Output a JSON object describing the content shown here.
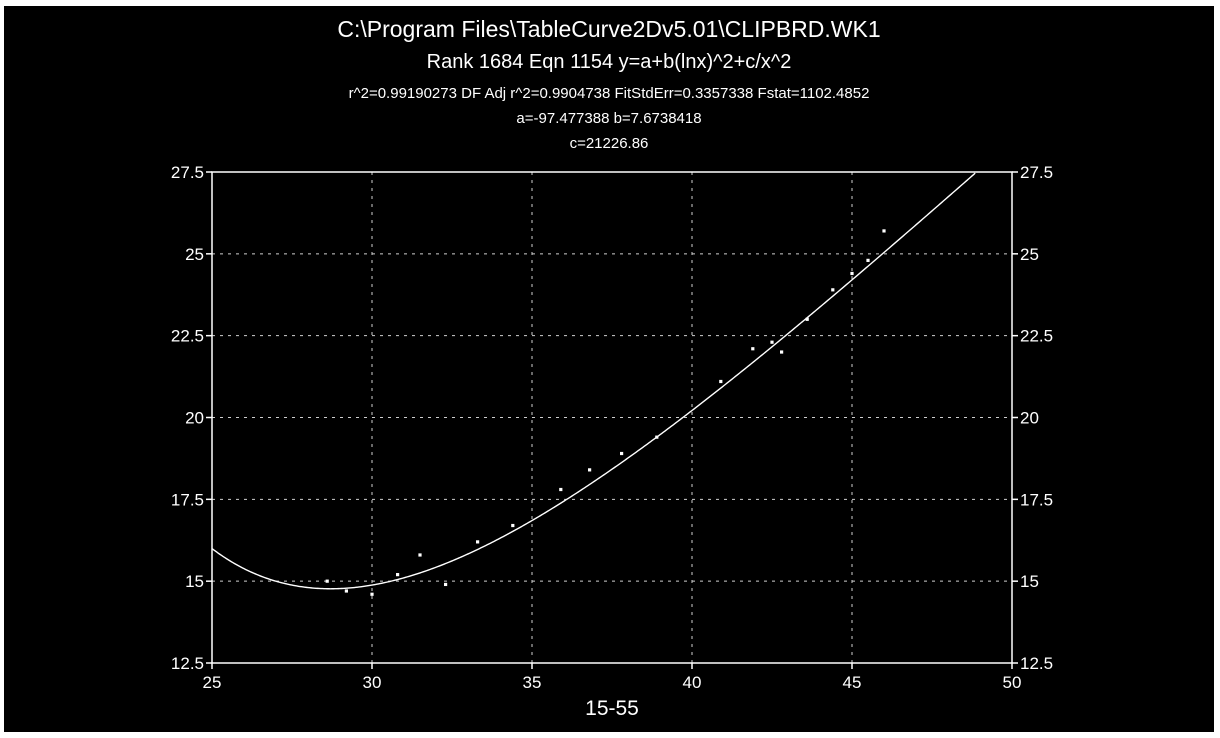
{
  "header": {
    "file_path": "C:\\Program Files\\TableCurve2Dv5.01\\CLIPBRD.WK1",
    "equation_line": "Rank 1684  Eqn 1154  y=a+b(lnx)^2+c/x^2",
    "stats_line": "r^2=0.99190273  DF Adj r^2=0.9904738  FitStdErr=0.3357338  Fstat=1102.4852",
    "coef_line_1": "a=-97.477388 b=7.6738418",
    "coef_line_2": "c=21226.86"
  },
  "colors": {
    "background": "#000000",
    "foreground": "#ffffff",
    "grid": "#cfcfcf"
  },
  "chart_data": {
    "type": "scatter",
    "xlabel": "15-55",
    "ylabel": "",
    "xlim": [
      25,
      50
    ],
    "ylim": [
      12.5,
      27.5
    ],
    "x_ticks": [
      25,
      30,
      35,
      40,
      45,
      50
    ],
    "y_ticks": [
      12.5,
      15,
      17.5,
      20,
      22.5,
      25,
      27.5
    ],
    "grid": "dashed",
    "right_axis_mirrored": true,
    "fit": {
      "equation": "y=a+b(lnx)^2+c/x^2",
      "a": -97.477388,
      "b": 7.6738418,
      "c": 21226.86
    },
    "points": [
      {
        "x": 28.6,
        "y": 15.0
      },
      {
        "x": 29.2,
        "y": 14.7
      },
      {
        "x": 30.0,
        "y": 14.6
      },
      {
        "x": 30.8,
        "y": 15.2
      },
      {
        "x": 31.5,
        "y": 15.8
      },
      {
        "x": 32.3,
        "y": 14.9
      },
      {
        "x": 33.3,
        "y": 16.2
      },
      {
        "x": 34.4,
        "y": 16.7
      },
      {
        "x": 35.9,
        "y": 17.8
      },
      {
        "x": 36.8,
        "y": 18.4
      },
      {
        "x": 37.8,
        "y": 18.9
      },
      {
        "x": 38.9,
        "y": 19.4
      },
      {
        "x": 40.9,
        "y": 21.1
      },
      {
        "x": 41.9,
        "y": 22.1
      },
      {
        "x": 42.5,
        "y": 22.3
      },
      {
        "x": 42.8,
        "y": 22.0
      },
      {
        "x": 43.6,
        "y": 23.0
      },
      {
        "x": 44.4,
        "y": 23.9
      },
      {
        "x": 45.0,
        "y": 24.4
      },
      {
        "x": 45.5,
        "y": 24.8
      },
      {
        "x": 46.0,
        "y": 25.7
      }
    ]
  }
}
